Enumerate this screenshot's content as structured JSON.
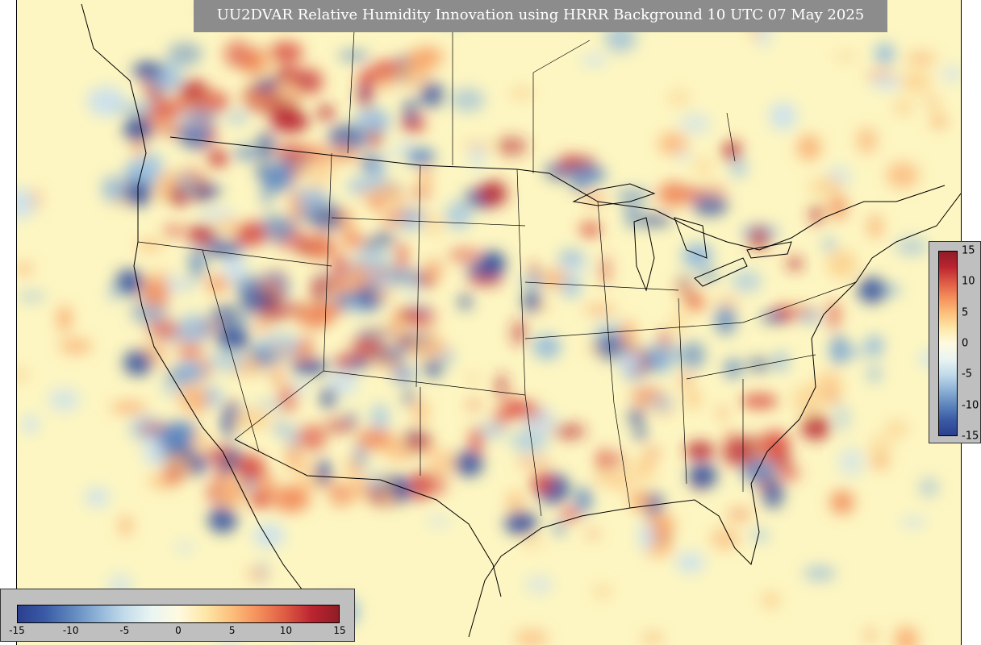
{
  "title": "UU2DVAR Relative Humidity Innovation using HRRR Background 10 UTC 07 May 2025",
  "map": {
    "region": "CONUS",
    "field": "Relative Humidity Innovation",
    "basemap": "coastlines, state and national borders",
    "background_color": "#fdf6c2"
  },
  "colorbar": {
    "min": -15,
    "max": 15,
    "colors": [
      "#2b3f8e",
      "#3a5aa6",
      "#5f86bd",
      "#8fb3d7",
      "#c3dceb",
      "#eaf5f2",
      "#fffae0",
      "#fde7a8",
      "#fcbf7b",
      "#f48e5b",
      "#de5a44",
      "#bb2430",
      "#8f1d26"
    ],
    "horizontal_ticks": [
      "-15",
      "-10",
      "-5",
      "0",
      "5",
      "10",
      "15"
    ],
    "vertical_ticks": [
      "15",
      "10",
      "5",
      "0",
      "-5",
      "-10",
      "-15"
    ]
  }
}
